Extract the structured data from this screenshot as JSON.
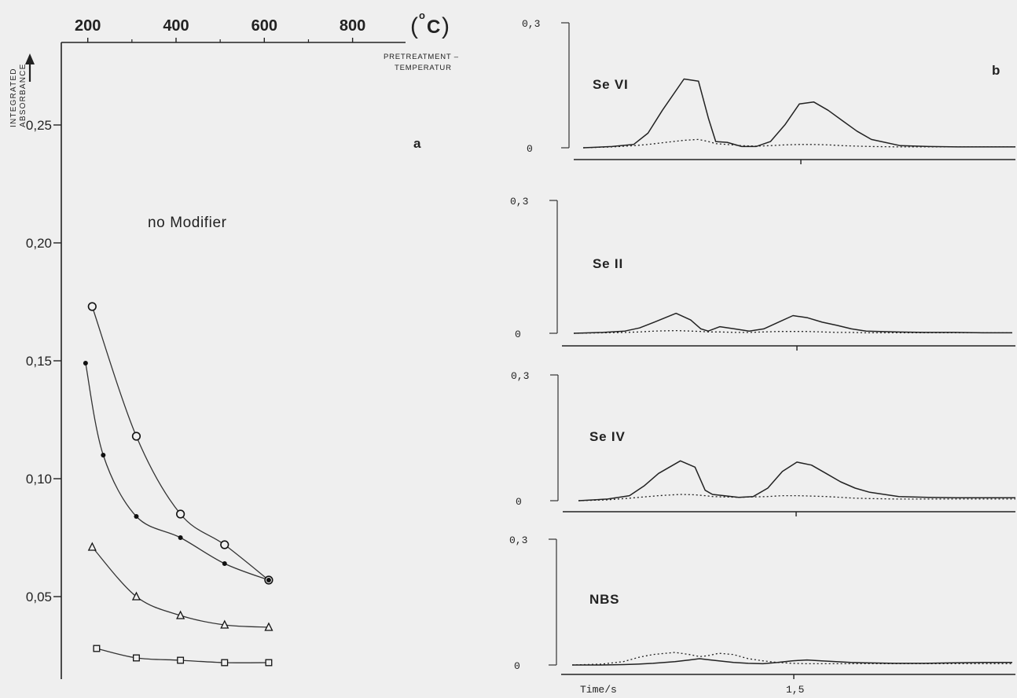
{
  "panel_a": {
    "label": "a",
    "annotation": "no Modifier",
    "y_axis_title_line1": "INTEGRATED",
    "y_axis_title_line2": "ABSORBANCE",
    "top_axis_unit_open": "(",
    "top_axis_unit_degree": "o",
    "top_axis_unit_letter": "C",
    "top_axis_unit_close": ")",
    "top_axis_title_line1": "PRETREATMENT –",
    "top_axis_title_line2": "TEMPERATUR"
  },
  "panel_b": {
    "label": "b",
    "x_axis_label": "Time/s",
    "x_tick_label": "1,5"
  },
  "chart_data": [
    {
      "type": "scatter",
      "title": "",
      "xlabel": "PRETREATMENT – TEMPERATUR (°C)",
      "ylabel": "INTEGRATED ABSORBANCE",
      "xlim": [
        140,
        920
      ],
      "ylim": [
        0.015,
        0.285
      ],
      "x_ticks": [
        200,
        400,
        600,
        800
      ],
      "x_tick_labels": [
        "200",
        "400",
        "600",
        "800"
      ],
      "y_ticks": [
        0.05,
        0.1,
        0.15,
        0.2,
        0.25
      ],
      "y_tick_labels": [
        "0,05",
        "0,10",
        "0,15",
        "0,20",
        "0,25"
      ],
      "grid": false,
      "series": [
        {
          "marker": "circle",
          "x": [
            210,
            310,
            410,
            510,
            610
          ],
          "y": [
            0.173,
            0.118,
            0.085,
            0.072,
            0.057
          ]
        },
        {
          "marker": "dot",
          "x": [
            195,
            235,
            310,
            410,
            510,
            610
          ],
          "y": [
            0.149,
            0.11,
            0.084,
            0.075,
            0.064,
            0.057
          ]
        },
        {
          "marker": "triangle",
          "x": [
            210,
            310,
            410,
            510,
            610
          ],
          "y": [
            0.071,
            0.05,
            0.042,
            0.038,
            0.037
          ]
        },
        {
          "marker": "square",
          "x": [
            220,
            310,
            410,
            510,
            610
          ],
          "y": [
            0.028,
            0.024,
            0.023,
            0.022,
            0.022
          ]
        }
      ]
    },
    {
      "type": "line",
      "title": "Se VI",
      "ylabel": "",
      "ylim": [
        0,
        0.3
      ],
      "y_ticks": [
        0,
        0.3
      ],
      "y_tick_labels": [
        "0",
        "0,3"
      ],
      "x": [
        0,
        0.2,
        0.35,
        0.45,
        0.55,
        0.7,
        0.8,
        0.87,
        0.92,
        1.0,
        1.1,
        1.2,
        1.3,
        1.4,
        1.5,
        1.6,
        1.7,
        1.8,
        1.9,
        2.0,
        2.2,
        2.4,
        2.6,
        2.8,
        3.0
      ],
      "series": [
        {
          "style": "solid",
          "values": [
            0,
            0.003,
            0.008,
            0.035,
            0.09,
            0.165,
            0.16,
            0.07,
            0.015,
            0.013,
            0.003,
            0.003,
            0.015,
            0.055,
            0.105,
            0.11,
            0.09,
            0.065,
            0.04,
            0.02,
            0.005,
            0.003,
            0.002,
            0.002,
            0.002
          ]
        },
        {
          "style": "dotted",
          "values": [
            0,
            0.002,
            0.005,
            0.008,
            0.012,
            0.018,
            0.02,
            0.015,
            0.01,
            0.008,
            0.005,
            0.004,
            0.005,
            0.007,
            0.008,
            0.008,
            0.007,
            0.005,
            0.004,
            0.003,
            0.002,
            0.002,
            0.002,
            0.002,
            0.002
          ]
        }
      ]
    },
    {
      "type": "line",
      "title": "Se II",
      "ylabel": "",
      "ylim": [
        0,
        0.3
      ],
      "y_ticks": [
        0,
        0.3
      ],
      "y_tick_labels": [
        "0",
        "0,3"
      ],
      "x": [
        0,
        0.2,
        0.35,
        0.45,
        0.55,
        0.7,
        0.8,
        0.87,
        0.92,
        1.0,
        1.1,
        1.2,
        1.3,
        1.4,
        1.5,
        1.6,
        1.7,
        1.8,
        1.9,
        2.0,
        2.2,
        2.4,
        2.6,
        2.8,
        3.0
      ],
      "series": [
        {
          "style": "solid",
          "values": [
            0,
            0.002,
            0.005,
            0.012,
            0.025,
            0.045,
            0.03,
            0.01,
            0.005,
            0.015,
            0.01,
            0.005,
            0.01,
            0.025,
            0.04,
            0.035,
            0.025,
            0.018,
            0.01,
            0.005,
            0.003,
            0.002,
            0.002,
            0.001,
            0.001
          ]
        },
        {
          "style": "dotted",
          "values": [
            0,
            0.001,
            0.002,
            0.003,
            0.005,
            0.006,
            0.005,
            0.004,
            0.003,
            0.003,
            0.002,
            0.002,
            0.003,
            0.004,
            0.004,
            0.004,
            0.003,
            0.002,
            0.002,
            0.001,
            0.001,
            0.001,
            0.001,
            0.001,
            0.001
          ]
        }
      ]
    },
    {
      "type": "line",
      "title": "Se IV",
      "ylabel": "",
      "ylim": [
        0,
        0.3
      ],
      "y_ticks": [
        0,
        0.3
      ],
      "y_tick_labels": [
        "0",
        "0,3"
      ],
      "x": [
        0,
        0.2,
        0.35,
        0.45,
        0.55,
        0.7,
        0.8,
        0.87,
        0.92,
        1.0,
        1.1,
        1.2,
        1.3,
        1.4,
        1.5,
        1.6,
        1.7,
        1.8,
        1.9,
        2.0,
        2.2,
        2.4,
        2.6,
        2.8,
        3.0
      ],
      "series": [
        {
          "style": "solid",
          "values": [
            0,
            0.004,
            0.012,
            0.035,
            0.065,
            0.095,
            0.08,
            0.025,
            0.015,
            0.012,
            0.008,
            0.01,
            0.03,
            0.07,
            0.092,
            0.085,
            0.065,
            0.045,
            0.03,
            0.02,
            0.01,
            0.008,
            0.007,
            0.007,
            0.007
          ]
        },
        {
          "style": "dotted",
          "values": [
            0,
            0.002,
            0.006,
            0.009,
            0.012,
            0.015,
            0.014,
            0.012,
            0.01,
            0.009,
            0.008,
            0.009,
            0.01,
            0.012,
            0.012,
            0.011,
            0.01,
            0.008,
            0.006,
            0.005,
            0.004,
            0.004,
            0.004,
            0.004,
            0.004
          ]
        }
      ]
    },
    {
      "type": "line",
      "title": "NBS",
      "ylabel": "",
      "ylim": [
        0,
        0.3
      ],
      "y_ticks": [
        0,
        0.3
      ],
      "y_tick_labels": [
        "0",
        "0,3"
      ],
      "x": [
        0,
        0.2,
        0.35,
        0.45,
        0.55,
        0.7,
        0.8,
        0.87,
        0.92,
        1.0,
        1.1,
        1.2,
        1.3,
        1.4,
        1.5,
        1.6,
        1.7,
        1.8,
        1.9,
        2.0,
        2.2,
        2.4,
        2.6,
        2.8,
        3.0
      ],
      "series": [
        {
          "style": "solid",
          "values": [
            0,
            0,
            0.001,
            0.002,
            0.004,
            0.008,
            0.012,
            0.015,
            0.013,
            0.01,
            0.006,
            0.004,
            0.003,
            0.006,
            0.01,
            0.012,
            0.01,
            0.008,
            0.006,
            0.005,
            0.004,
            0.004,
            0.005,
            0.006,
            0.006
          ]
        },
        {
          "style": "dotted",
          "values": [
            0,
            0.002,
            0.008,
            0.018,
            0.025,
            0.03,
            0.025,
            0.02,
            0.022,
            0.028,
            0.025,
            0.015,
            0.01,
            0.006,
            0.004,
            0.003,
            0.003,
            0.003,
            0.003,
            0.003,
            0.003,
            0.003,
            0.003,
            0.003,
            0.003
          ]
        }
      ]
    }
  ]
}
